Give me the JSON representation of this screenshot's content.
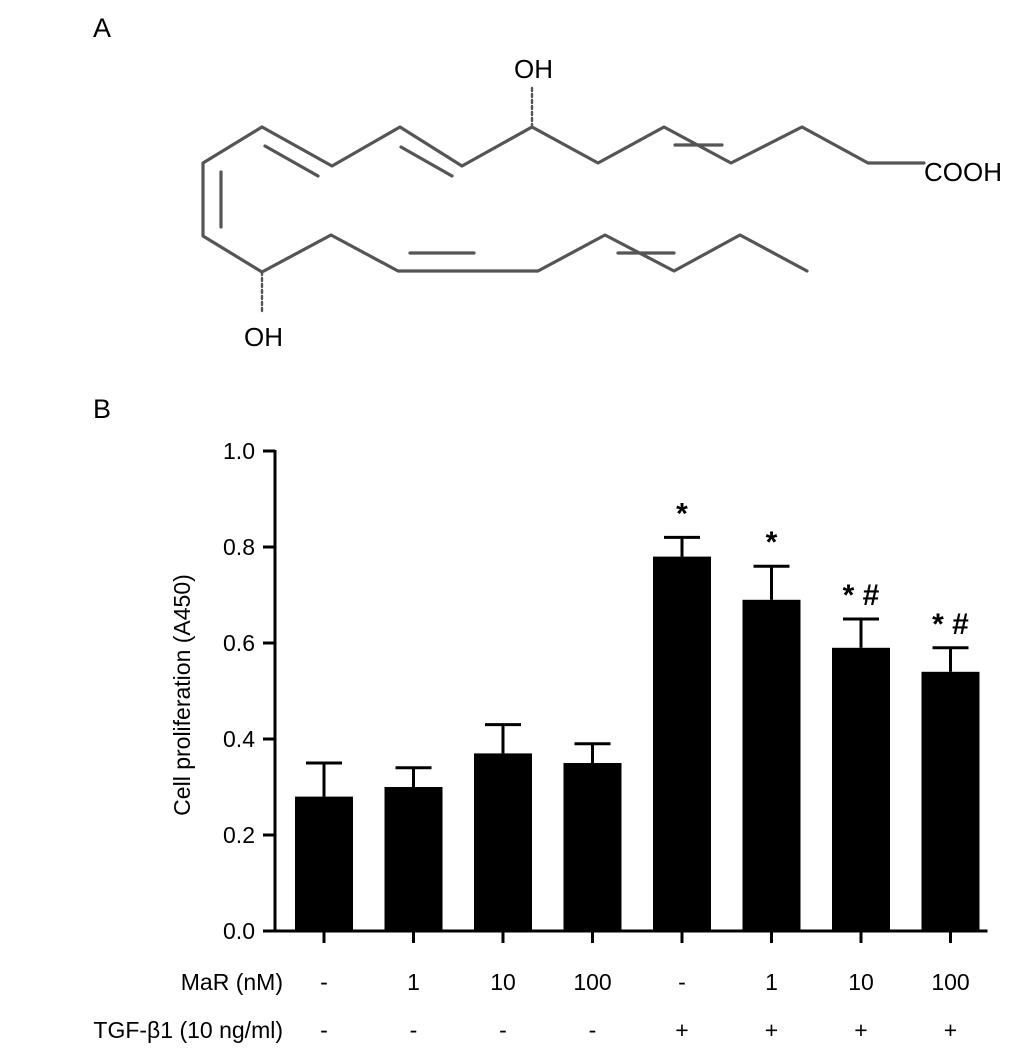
{
  "panel_a": {
    "label": "A",
    "oh_top": "OH",
    "oh_bottom": "OH",
    "acid_group": "COOH"
  },
  "panel_b": {
    "label": "B"
  },
  "chart_data": {
    "type": "bar",
    "title": "",
    "xlabel": "",
    "ylabel": "Cell proliferation (A450)",
    "ylim": [
      0,
      1.0
    ],
    "yticks": [
      "0.0",
      "0.2",
      "0.4",
      "0.6",
      "0.8",
      "1.0"
    ],
    "grid": false,
    "legend": "none",
    "bar_color": "#000000",
    "row_labels": {
      "mar": "MaR (nM)",
      "tgf": "TGF-β1 (10 ng/ml)"
    },
    "mar_row": [
      "-",
      "1",
      "10",
      "100",
      "-",
      "1",
      "10",
      "100"
    ],
    "tgf_row": [
      "-",
      "-",
      "-",
      "-",
      "+",
      "+",
      "+",
      "+"
    ],
    "values": [
      0.28,
      0.3,
      0.37,
      0.35,
      0.78,
      0.69,
      0.59,
      0.54
    ],
    "errors": [
      0.07,
      0.04,
      0.06,
      0.04,
      0.04,
      0.07,
      0.06,
      0.05
    ],
    "annotations": [
      "",
      "",
      "",
      "",
      "*",
      "*",
      "*#",
      "*#"
    ]
  }
}
